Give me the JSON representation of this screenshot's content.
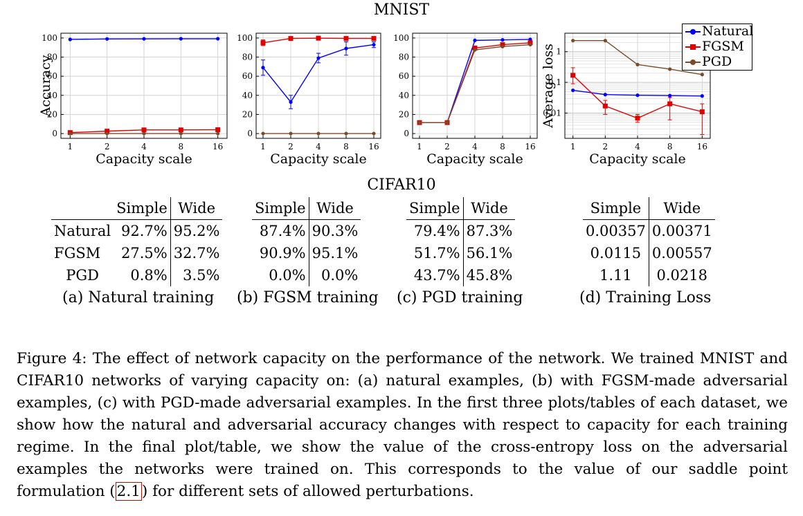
{
  "titles": {
    "mnist": "MNIST",
    "cifar": "CIFAR10"
  },
  "colors": {
    "natural": "#0000ff",
    "fgsm": "#e00000",
    "pgd": "#7a4b2a"
  },
  "legend": [
    "Natural",
    "FGSM",
    "PGD"
  ],
  "chart_data": [
    {
      "type": "line",
      "panel": "a",
      "x": [
        1,
        2,
        4,
        8,
        16
      ],
      "xscale": "log2",
      "xlabel": "Capacity scale",
      "ylabel": "Accuracy",
      "ylim": [
        -5,
        105
      ],
      "yticks": [
        0,
        20,
        40,
        60,
        80,
        100
      ],
      "series": [
        {
          "name": "Natural",
          "values": [
            98.5,
            99.0,
            99.1,
            99.2,
            99.2
          ]
        },
        {
          "name": "FGSM",
          "values": [
            1.0,
            2.5,
            3.8,
            3.8,
            4.0
          ]
        },
        {
          "name": "PGD",
          "values": [
            0,
            0,
            0,
            0,
            0
          ]
        }
      ]
    },
    {
      "type": "line",
      "panel": "b",
      "x": [
        1,
        2,
        4,
        8,
        16
      ],
      "xscale": "log2",
      "xlabel": "Capacity scale",
      "ylabel": "",
      "ylim": [
        -5,
        105
      ],
      "yticks": [
        0,
        20,
        40,
        60,
        80,
        100
      ],
      "series": [
        {
          "name": "Natural",
          "values": [
            69,
            33,
            79,
            89,
            93
          ],
          "err": [
            8,
            7,
            5,
            7,
            3
          ]
        },
        {
          "name": "FGSM",
          "values": [
            95,
            99.5,
            99.8,
            99.5,
            99.5
          ],
          "err": [
            3,
            0,
            0,
            0,
            0
          ]
        },
        {
          "name": "PGD",
          "values": [
            0,
            0,
            0,
            0,
            0
          ]
        }
      ]
    },
    {
      "type": "line",
      "panel": "c",
      "x": [
        1,
        2,
        4,
        8,
        16
      ],
      "xscale": "log2",
      "xlabel": "Capacity scale",
      "ylabel": "",
      "ylim": [
        -5,
        105
      ],
      "yticks": [
        0,
        20,
        40,
        60,
        80,
        100
      ],
      "series": [
        {
          "name": "Natural",
          "values": [
            11.5,
            11.5,
            97.5,
            98,
            98.5
          ]
        },
        {
          "name": "FGSM",
          "values": [
            11.5,
            11.5,
            89.5,
            93,
            95
          ]
        },
        {
          "name": "PGD",
          "values": [
            11.5,
            11.5,
            87.5,
            91,
            93
          ]
        }
      ]
    },
    {
      "type": "line",
      "panel": "d",
      "x": [
        1,
        2,
        4,
        8,
        16
      ],
      "xscale": "log2",
      "xlabel": "Capacity scale",
      "ylabel": "Average loss",
      "yscale": "log",
      "ylim": [
        0.0015,
        4
      ],
      "yticks": [
        0.01,
        0.1,
        1
      ],
      "series": [
        {
          "name": "Natural",
          "values": [
            0.055,
            0.04,
            0.038,
            0.037,
            0.036
          ]
        },
        {
          "name": "FGSM",
          "values": [
            0.17,
            0.017,
            0.0068,
            0.02,
            0.011
          ],
          "err_low": [
            0.09,
            0.009,
            0.005,
            0.006,
            0.002
          ],
          "err_high": [
            0.3,
            0.026,
            0.009,
            0.032,
            0.02
          ]
        },
        {
          "name": "PGD",
          "values": [
            2.3,
            2.3,
            0.38,
            0.27,
            0.18
          ]
        }
      ]
    }
  ],
  "tables": [
    {
      "head": [
        "Simple",
        "Wide"
      ],
      "rows": [
        {
          "label": "Natural",
          "simple": "92.7%",
          "wide": "95.2%"
        },
        {
          "label": "FGSM",
          "simple": "27.5%",
          "wide": "32.7%"
        },
        {
          "label": "PGD",
          "simple": "0.8%",
          "wide": "3.5%"
        }
      ]
    },
    {
      "head": [
        "Simple",
        "Wide"
      ],
      "rows": [
        {
          "simple": "87.4%",
          "wide": "90.3%"
        },
        {
          "simple": "90.9%",
          "wide": "95.1%"
        },
        {
          "simple": "0.0%",
          "wide": "0.0%"
        }
      ]
    },
    {
      "head": [
        "Simple",
        "Wide"
      ],
      "rows": [
        {
          "simple": "79.4%",
          "wide": "87.3%"
        },
        {
          "simple": "51.7%",
          "wide": "56.1%"
        },
        {
          "simple": "43.7%",
          "wide": "45.8%"
        }
      ]
    },
    {
      "head": [
        "Simple",
        "Wide"
      ],
      "rows": [
        {
          "simple": "0.00357",
          "wide": "0.00371"
        },
        {
          "simple": "0.0115",
          "wide": "0.00557"
        },
        {
          "simple": "1.11",
          "wide": "0.0218"
        }
      ]
    }
  ],
  "subcaptions": [
    "(a) Natural training",
    "(b) FGSM training",
    "(c) PGD training",
    "(d) Training Loss"
  ],
  "caption": {
    "part1": "Figure 4: The effect of network capacity on the performance of the network. We trained MNIST and CIFAR10 networks of varying capacity on: (a) natural examples, (b) with FGSM-made adversarial examples, (c) with PGD-made adversarial examples. In the first three plots/tables of each dataset, we show how the natural and adversarial accuracy changes with respect to capacity for each training regime. In the final plot/table, we show the value of the cross-entropy loss on the adversarial examples the networks were trained on. This corresponds to the value of our saddle point formulation (",
    "ref": "2.1",
    "part2": ") for different sets of allowed perturbations."
  }
}
